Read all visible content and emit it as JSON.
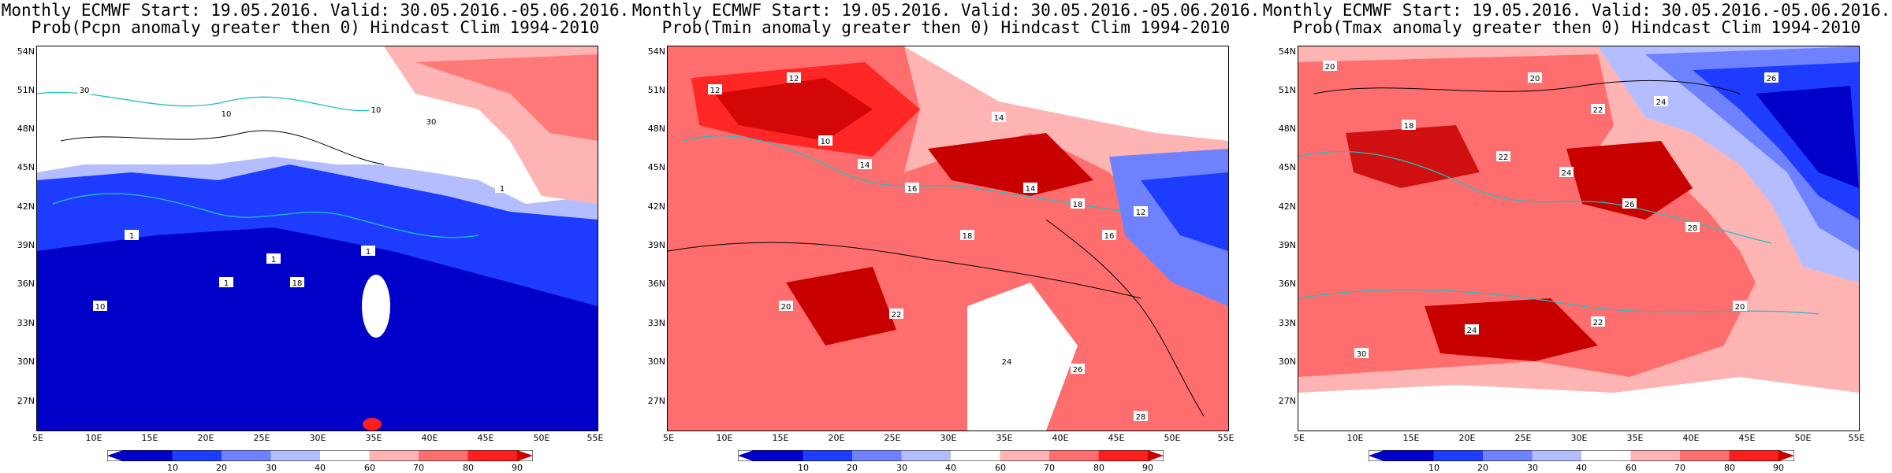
{
  "panels": [
    {
      "id": "pcpn",
      "title_line1": "Monthly ECMWF Start: 19.05.2016. Valid: 30.05.2016.-05.06.2016.",
      "title_line2": "Prob(Pcpn anomaly greater then 0) Hindcast Clim 1994-2010",
      "contour_labels": [
        "30",
        "10",
        "10",
        "30",
        "1",
        "10",
        "1",
        "18",
        "1",
        "1",
        "1"
      ]
    },
    {
      "id": "tmin",
      "title_line1": "Monthly ECMWF Start: 19.05.2016. Valid: 30.05.2016.-05.06.2016.",
      "title_line2": "Prob(Tmin anomaly greater then 0) Hindcast Clim 1994-2010",
      "contour_labels": [
        "12",
        "12",
        "10",
        "14",
        "16",
        "14",
        "18",
        "12",
        "20",
        "22",
        "18",
        "24",
        "26",
        "28",
        "16",
        "14"
      ]
    },
    {
      "id": "tmax",
      "title_line1": "Monthly ECMWF Start: 19.05.2016. Valid: 30.05.2016.-05.06.2016.",
      "title_line2": "Prob(Tmax anomaly greater then 0) Hindcast Clim 1994-2010",
      "contour_labels": [
        "20",
        "20",
        "22",
        "24",
        "26",
        "18",
        "22",
        "24",
        "26",
        "28",
        "30",
        "24",
        "22",
        "20"
      ]
    }
  ],
  "lat_labels": [
    "54N",
    "51N",
    "48N",
    "45N",
    "42N",
    "39N",
    "36N",
    "33N",
    "30N",
    "27N"
  ],
  "lon_labels": [
    "5E",
    "10E",
    "15E",
    "20E",
    "25E",
    "30E",
    "35E",
    "40E",
    "45E",
    "50E",
    "55E"
  ],
  "colorbar": {
    "ticks": [
      "10",
      "20",
      "30",
      "40",
      "60",
      "70",
      "80",
      "90"
    ],
    "colors": [
      "#0000c8",
      "#1e3cff",
      "#6e82ff",
      "#b4beff",
      "#ffffff",
      "#ffb4b4",
      "#ff6e6e",
      "#ff1e1e",
      "#c80000"
    ]
  },
  "colors": {
    "coastline": "#20c0c0",
    "contour": "#000000"
  }
}
